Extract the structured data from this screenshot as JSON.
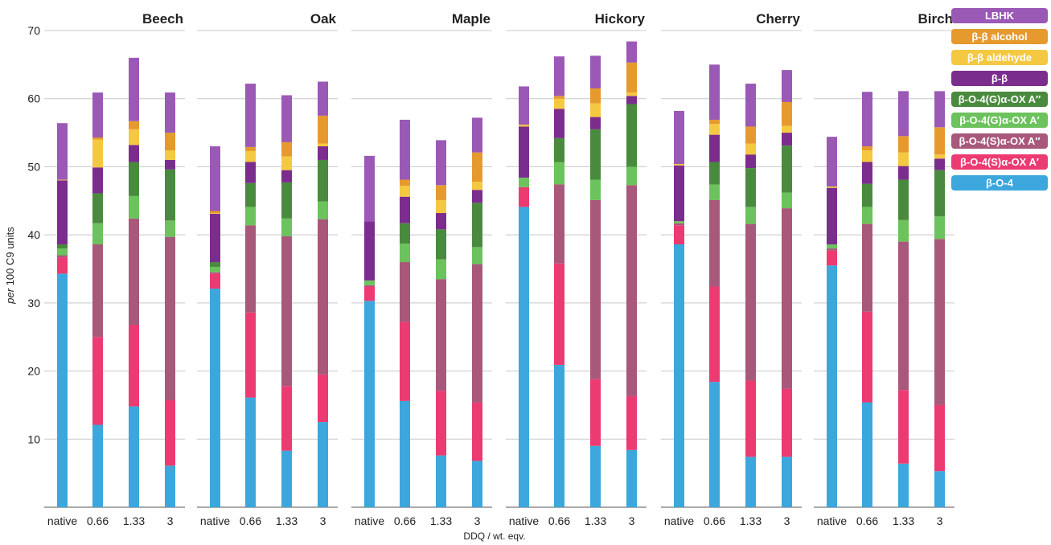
{
  "chart_data": {
    "type": "bar",
    "stacked": true,
    "ylabel_prefix": "per",
    "ylabel_suffix": " 100 C9 units",
    "xlabel": "DDQ / wt. eqv.",
    "ylim": [
      0,
      70
    ],
    "yticks": [
      10,
      20,
      30,
      40,
      50,
      60,
      70
    ],
    "categories": [
      "native",
      "0.66",
      "1.33",
      "3"
    ],
    "legend": [
      {
        "key": "LBHK",
        "label": "LBHK",
        "color": "#9b59b6"
      },
      {
        "key": "bb_alcohol",
        "label": "β-β alcohol",
        "color": "#e69a2e"
      },
      {
        "key": "bb_aldehyde",
        "label": "β-β aldehyde",
        "color": "#f5c842"
      },
      {
        "key": "bb",
        "label": "β-β",
        "color": "#7b2d8e"
      },
      {
        "key": "bO4G_A2",
        "label": "β-O-4(G)α-OX A″",
        "color": "#4a8a3e"
      },
      {
        "key": "bO4G_A1",
        "label": "β-O-4(G)α-OX A′",
        "color": "#6cc25c"
      },
      {
        "key": "bO4S_A2",
        "label": "β-O-4(S)α-OX A″",
        "color": "#a8587a"
      },
      {
        "key": "bO4S_A1",
        "label": "β-O-4(S)α-OX A′",
        "color": "#ec3a72"
      },
      {
        "key": "bO4",
        "label": "β-O-4",
        "color": "#3ba7dd"
      }
    ],
    "stack_order": [
      "bO4",
      "bO4S_A1",
      "bO4S_A2",
      "bO4G_A1",
      "bO4G_A2",
      "bb",
      "bb_aldehyde",
      "bb_alcohol",
      "LBHK"
    ],
    "panels": [
      {
        "title": "Beech",
        "series": {
          "bO4": [
            34.3,
            12.1,
            14.8,
            6.1
          ],
          "bO4S_A1": [
            2.4,
            12.9,
            12.0,
            9.6
          ],
          "bO4S_A2": [
            0.3,
            13.6,
            15.6,
            24.0
          ],
          "bO4G_A1": [
            1.0,
            3.1,
            3.3,
            2.4
          ],
          "bO4G_A2": [
            0.6,
            4.4,
            5.0,
            7.5
          ],
          "bb": [
            9.4,
            3.8,
            2.5,
            1.4
          ],
          "bb_aldehyde": [
            0.1,
            4.1,
            2.3,
            1.4
          ],
          "bb_alcohol": [
            0.0,
            0.3,
            1.2,
            2.6
          ],
          "LBHK": [
            8.3,
            6.6,
            9.3,
            5.9
          ]
        }
      },
      {
        "title": "Oak",
        "series": {
          "bO4": [
            32.1,
            16.1,
            8.3,
            12.5
          ],
          "bO4S_A1": [
            2.2,
            12.5,
            9.5,
            7.0
          ],
          "bO4S_A2": [
            0.2,
            12.8,
            22.0,
            22.8
          ],
          "bO4G_A1": [
            0.8,
            2.7,
            2.6,
            2.6
          ],
          "bO4G_A2": [
            0.7,
            3.5,
            5.3,
            6.1
          ],
          "bb": [
            7.1,
            3.1,
            1.8,
            2.0
          ],
          "bb_aldehyde": [
            0.1,
            1.6,
            2.0,
            0.4
          ],
          "bb_alcohol": [
            0.3,
            0.6,
            2.1,
            4.1
          ],
          "LBHK": [
            9.5,
            9.3,
            6.9,
            5.0
          ]
        }
      },
      {
        "title": "Maple",
        "series": {
          "bO4": [
            30.3,
            15.6,
            7.6,
            6.8
          ],
          "bO4S_A1": [
            2.1,
            11.6,
            9.5,
            8.6
          ],
          "bO4S_A2": [
            0.2,
            8.8,
            16.4,
            20.3
          ],
          "bO4G_A1": [
            0.7,
            2.7,
            2.9,
            2.5
          ],
          "bO4G_A2": [
            0.0,
            3.0,
            4.4,
            6.5
          ],
          "bb": [
            8.7,
            3.9,
            2.4,
            1.9
          ],
          "bb_aldehyde": [
            0.0,
            1.6,
            1.9,
            1.2
          ],
          "bb_alcohol": [
            0.0,
            0.9,
            2.2,
            4.3
          ],
          "LBHK": [
            9.6,
            8.8,
            6.6,
            5.1
          ]
        }
      },
      {
        "title": "Hickory",
        "series": {
          "bO4": [
            44.1,
            20.9,
            9.0,
            8.4
          ],
          "bO4S_A1": [
            2.9,
            14.9,
            9.8,
            7.9
          ],
          "bO4S_A2": [
            0.0,
            11.6,
            26.3,
            31.0
          ],
          "bO4G_A1": [
            1.4,
            3.3,
            3.0,
            2.7
          ],
          "bO4G_A2": [
            0.0,
            3.5,
            7.4,
            9.2
          ],
          "bb": [
            7.5,
            4.3,
            1.8,
            1.2
          ],
          "bb_aldehyde": [
            0.2,
            1.5,
            2.0,
            0.5
          ],
          "bb_alcohol": [
            0.1,
            0.4,
            2.2,
            4.4
          ],
          "LBHK": [
            5.6,
            5.8,
            4.8,
            3.1
          ]
        }
      },
      {
        "title": "Cherry",
        "series": {
          "bO4": [
            38.6,
            18.4,
            7.4,
            7.4
          ],
          "bO4S_A1": [
            2.8,
            14.0,
            11.2,
            10.0
          ],
          "bO4S_A2": [
            0.3,
            12.7,
            23.0,
            26.5
          ],
          "bO4G_A1": [
            0.3,
            2.3,
            2.5,
            2.3
          ],
          "bO4G_A2": [
            0.0,
            3.3,
            5.7,
            6.9
          ],
          "bb": [
            8.2,
            4.0,
            2.0,
            1.9
          ],
          "bb_aldehyde": [
            0.2,
            1.6,
            1.6,
            1.0
          ],
          "bb_alcohol": [
            0.0,
            0.6,
            2.5,
            3.5
          ],
          "LBHK": [
            7.8,
            8.1,
            6.3,
            4.7
          ]
        }
      },
      {
        "title": "Birch",
        "series": {
          "bO4": [
            35.5,
            15.4,
            6.4,
            5.3
          ],
          "bO4S_A1": [
            2.2,
            13.3,
            10.8,
            9.7
          ],
          "bO4S_A2": [
            0.3,
            12.9,
            21.8,
            24.4
          ],
          "bO4G_A1": [
            0.6,
            2.5,
            3.2,
            3.3
          ],
          "bO4G_A2": [
            0.0,
            3.4,
            5.9,
            6.8
          ],
          "bb": [
            8.3,
            3.2,
            2.0,
            1.7
          ],
          "bb_aldehyde": [
            0.2,
            1.7,
            2.0,
            0.6
          ],
          "bb_alcohol": [
            0.0,
            0.6,
            2.4,
            4.0
          ],
          "LBHK": [
            7.3,
            8.0,
            6.6,
            5.3
          ]
        }
      }
    ]
  }
}
